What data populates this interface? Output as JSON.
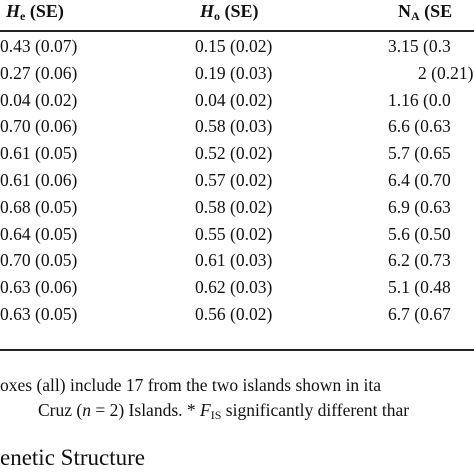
{
  "table": {
    "header": [
      {
        "symbol": "H",
        "sub": "e",
        "rest": " (SE)"
      },
      {
        "symbol": "H",
        "sub": "o",
        "rest": " (SE)"
      },
      {
        "symbol": "N",
        "sub": "A",
        "rest": " (SE"
      }
    ],
    "rows": [
      [
        "0.43 (0.07)",
        "0.15 (0.02)",
        "3.15 (0.3"
      ],
      [
        "0.27 (0.06)",
        "0.19 (0.03)",
        "2 (0.21)"
      ],
      [
        "0.04 (0.02)",
        "0.04 (0.02)",
        "1.16 (0.0"
      ],
      [
        "0.70 (0.06)",
        "0.58 (0.03)",
        "6.6 (0.63"
      ],
      [
        "0.61 (0.05)",
        "0.52 (0.02)",
        "5.7 (0.65"
      ],
      [
        "0.61 (0.06)",
        "0.57 (0.02)",
        "6.4 (0.70"
      ],
      [
        "0.68 (0.05)",
        "0.58 (0.02)",
        "6.9 (0.63"
      ],
      [
        "0.64 (0.05)",
        "0.55 (0.02)",
        "5.6 (0.50"
      ],
      [
        "0.70 (0.05)",
        "0.61 (0.03)",
        "6.2 (0.73"
      ],
      [
        "0.63 (0.06)",
        "0.62 (0.03)",
        "5.1 (0.48"
      ],
      [
        "0.63 (0.05)",
        "0.56 (0.02)",
        "6.7 (0.67"
      ]
    ]
  },
  "footnote": {
    "line1": "oxes (all) include 17 from the two islands shown in ita",
    "line2": [
      "Cruz (",
      "n",
      " = 2) Islands. * ",
      "F",
      "IS",
      " significantly different thar"
    ]
  },
  "section_heading": "enetic Structure"
}
